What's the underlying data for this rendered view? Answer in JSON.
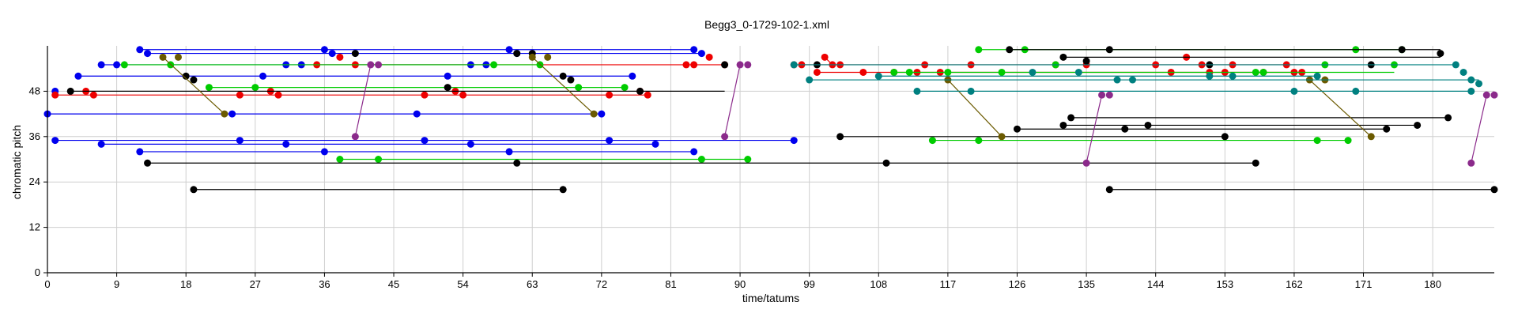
{
  "chart_data": {
    "type": "scatter",
    "title": "Begg3_0-1729-102-1.xml",
    "xlabel": "time/tatums",
    "ylabel": "chromatic pitch",
    "xlim": [
      0,
      188
    ],
    "ylim": [
      0,
      60
    ],
    "xticks": [
      0,
      9,
      18,
      27,
      36,
      45,
      54,
      63,
      72,
      81,
      90,
      99,
      108,
      117,
      126,
      135,
      144,
      153,
      162,
      171,
      180
    ],
    "yticks": [
      0,
      12,
      24,
      36,
      48
    ],
    "grid": true,
    "legend": "none",
    "series": [
      {
        "color": "#0000ee",
        "points": [
          [
            0,
            42
          ],
          [
            12,
            59
          ],
          [
            36,
            59
          ],
          [
            60,
            59
          ],
          [
            84,
            59
          ],
          [
            13,
            58
          ],
          [
            37,
            58
          ],
          [
            61,
            58
          ],
          [
            85,
            58
          ],
          [
            7,
            55
          ],
          [
            9,
            55
          ],
          [
            31,
            55
          ],
          [
            33,
            55
          ],
          [
            55,
            55
          ],
          [
            57,
            55
          ],
          [
            4,
            52
          ],
          [
            28,
            52
          ],
          [
            52,
            52
          ],
          [
            76,
            52
          ],
          [
            1,
            48
          ],
          [
            24,
            42
          ],
          [
            48,
            42
          ],
          [
            72,
            42
          ],
          [
            1,
            35
          ],
          [
            25,
            35
          ],
          [
            49,
            35
          ],
          [
            73,
            35
          ],
          [
            97,
            35
          ],
          [
            7,
            34
          ],
          [
            31,
            34
          ],
          [
            55,
            34
          ],
          [
            79,
            34
          ],
          [
            12,
            32
          ],
          [
            36,
            32
          ],
          [
            60,
            32
          ],
          [
            84,
            32
          ]
        ],
        "segments": [
          [
            0,
            42,
            72,
            42
          ],
          [
            12,
            59,
            84,
            59
          ],
          [
            13,
            58,
            85,
            58
          ],
          [
            7,
            55,
            57,
            55
          ],
          [
            4,
            52,
            76,
            52
          ],
          [
            1,
            35,
            97,
            35
          ],
          [
            7,
            34,
            79,
            34
          ],
          [
            12,
            32,
            84,
            32
          ]
        ]
      },
      {
        "color": "#ee0000",
        "points": [
          [
            1,
            47
          ],
          [
            5,
            48
          ],
          [
            6,
            47
          ],
          [
            35,
            55
          ],
          [
            38,
            57
          ],
          [
            40,
            55
          ],
          [
            84,
            55
          ],
          [
            86,
            57
          ],
          [
            88,
            55
          ],
          [
            25,
            47
          ],
          [
            29,
            48
          ],
          [
            30,
            47
          ],
          [
            49,
            47
          ],
          [
            53,
            48
          ],
          [
            54,
            47
          ],
          [
            73,
            47
          ],
          [
            77,
            48
          ],
          [
            78,
            47
          ],
          [
            83,
            55
          ],
          [
            97,
            55
          ],
          [
            98,
            55
          ],
          [
            100,
            53
          ],
          [
            101,
            57
          ],
          [
            102,
            55
          ],
          [
            103,
            55
          ],
          [
            106,
            53
          ],
          [
            110,
            53
          ],
          [
            113,
            53
          ],
          [
            114,
            55
          ],
          [
            116,
            53
          ],
          [
            120,
            55
          ],
          [
            131,
            55
          ],
          [
            135,
            55
          ],
          [
            144,
            55
          ],
          [
            146,
            53
          ],
          [
            148,
            57
          ],
          [
            150,
            55
          ],
          [
            151,
            53
          ],
          [
            153,
            53
          ],
          [
            154,
            55
          ],
          [
            158,
            53
          ],
          [
            161,
            55
          ],
          [
            162,
            53
          ],
          [
            163,
            53
          ]
        ],
        "segments": [
          [
            1,
            47,
            78,
            47
          ],
          [
            35,
            55,
            84,
            55
          ],
          [
            84,
            55,
            88,
            55
          ],
          [
            98,
            55,
            163,
            55
          ],
          [
            100,
            53,
            163,
            53
          ],
          [
            101,
            57,
            102,
            55
          ]
        ]
      },
      {
        "color": "#00cc00",
        "points": [
          [
            10,
            55
          ],
          [
            16,
            55
          ],
          [
            58,
            55
          ],
          [
            64,
            55
          ],
          [
            21,
            49
          ],
          [
            27,
            49
          ],
          [
            69,
            49
          ],
          [
            75,
            49
          ],
          [
            38,
            30
          ],
          [
            43,
            30
          ],
          [
            85,
            30
          ],
          [
            91,
            30
          ],
          [
            121,
            59
          ],
          [
            127,
            59
          ],
          [
            170,
            59
          ],
          [
            176,
            59
          ],
          [
            115,
            35
          ],
          [
            121,
            35
          ],
          [
            165,
            35
          ],
          [
            169,
            35
          ],
          [
            110,
            53
          ],
          [
            112,
            53
          ],
          [
            117,
            53
          ],
          [
            124,
            53
          ],
          [
            131,
            55
          ],
          [
            157,
            53
          ],
          [
            158,
            53
          ],
          [
            166,
            55
          ],
          [
            175,
            55
          ]
        ],
        "segments": [
          [
            10,
            55,
            64,
            55
          ],
          [
            21,
            49,
            75,
            49
          ],
          [
            38,
            30,
            91,
            30
          ],
          [
            121,
            59,
            176,
            59
          ],
          [
            115,
            35,
            169,
            35
          ],
          [
            110,
            53,
            175,
            53
          ]
        ]
      },
      {
        "color": "#000000",
        "points": [
          [
            3,
            48
          ],
          [
            18,
            52
          ],
          [
            19,
            51
          ],
          [
            40,
            58
          ],
          [
            61,
            58
          ],
          [
            63,
            58
          ],
          [
            67,
            52
          ],
          [
            68,
            51
          ],
          [
            88,
            55
          ],
          [
            52,
            49
          ],
          [
            77,
            48
          ],
          [
            13,
            29
          ],
          [
            61,
            29
          ],
          [
            109,
            29
          ],
          [
            157,
            29
          ],
          [
            19,
            22
          ],
          [
            67,
            22
          ],
          [
            100,
            55
          ],
          [
            125,
            59
          ],
          [
            132,
            57
          ],
          [
            135,
            56
          ],
          [
            138,
            59
          ],
          [
            151,
            55
          ],
          [
            172,
            55
          ],
          [
            176,
            59
          ],
          [
            181,
            58
          ],
          [
            126,
            38
          ],
          [
            132,
            39
          ],
          [
            140,
            38
          ],
          [
            143,
            39
          ],
          [
            153,
            36
          ],
          [
            174,
            38
          ],
          [
            178,
            39
          ],
          [
            182,
            41
          ],
          [
            133,
            41
          ],
          [
            138,
            22
          ],
          [
            188,
            22
          ],
          [
            103,
            36
          ]
        ],
        "segments": [
          [
            3,
            48,
            88,
            48
          ],
          [
            19,
            22,
            67,
            22
          ],
          [
            13,
            29,
            157,
            29
          ],
          [
            125,
            59,
            181,
            59
          ],
          [
            132,
            57,
            181,
            57
          ],
          [
            126,
            38,
            174,
            38
          ],
          [
            132,
            39,
            178,
            39
          ],
          [
            133,
            41,
            182,
            41
          ],
          [
            138,
            22,
            188,
            22
          ],
          [
            103,
            36,
            153,
            36
          ]
        ]
      },
      {
        "color": "#6b5a00",
        "points": [
          [
            15,
            57
          ],
          [
            17,
            57
          ],
          [
            23,
            42
          ],
          [
            63,
            57
          ],
          [
            65,
            57
          ],
          [
            71,
            42
          ],
          [
            117,
            51
          ],
          [
            124,
            36
          ],
          [
            164,
            51
          ],
          [
            166,
            51
          ],
          [
            172,
            36
          ]
        ],
        "segments": [
          [
            15,
            57,
            23,
            42
          ],
          [
            63,
            57,
            71,
            42
          ],
          [
            117,
            51,
            124,
            36
          ],
          [
            164,
            51,
            172,
            36
          ]
        ]
      },
      {
        "color": "#8b2a8b",
        "points": [
          [
            40,
            36
          ],
          [
            42,
            55
          ],
          [
            43,
            55
          ],
          [
            88,
            36
          ],
          [
            90,
            55
          ],
          [
            91,
            55
          ],
          [
            135,
            29
          ],
          [
            137,
            47
          ],
          [
            138,
            47
          ],
          [
            185,
            29
          ],
          [
            187,
            47
          ],
          [
            188,
            47
          ]
        ],
        "segments": [
          [
            40,
            36,
            42,
            55
          ],
          [
            88,
            36,
            90,
            55
          ],
          [
            135,
            29,
            137,
            47
          ],
          [
            185,
            29,
            187,
            47
          ]
        ]
      },
      {
        "color": "#008080",
        "points": [
          [
            97,
            55
          ],
          [
            99,
            51
          ],
          [
            113,
            48
          ],
          [
            128,
            53
          ],
          [
            141,
            51
          ],
          [
            151,
            52
          ],
          [
            162,
            48
          ],
          [
            165,
            52
          ],
          [
            183,
            55
          ],
          [
            184,
            53
          ],
          [
            185,
            51
          ],
          [
            186,
            50
          ],
          [
            185,
            48
          ],
          [
            108,
            52
          ],
          [
            120,
            48
          ],
          [
            134,
            53
          ],
          [
            139,
            51
          ],
          [
            154,
            52
          ],
          [
            170,
            48
          ]
        ],
        "segments": [
          [
            97,
            55,
            183,
            55
          ],
          [
            99,
            51,
            186,
            51
          ],
          [
            113,
            48,
            185,
            48
          ],
          [
            108,
            52,
            165,
            52
          ]
        ]
      }
    ]
  }
}
